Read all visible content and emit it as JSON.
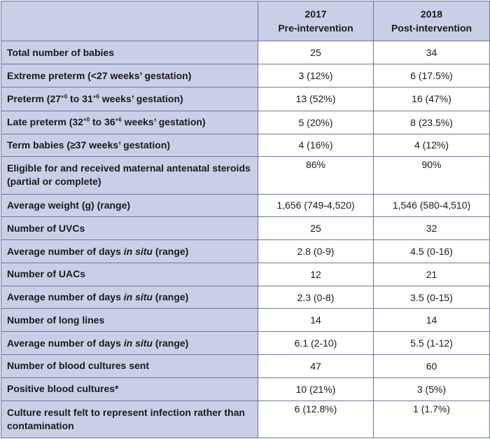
{
  "header": {
    "col1": {
      "year": "2017",
      "label": "Pre-intervention"
    },
    "col2": {
      "year": "2018",
      "label": "Post-intervention"
    }
  },
  "rows": [
    {
      "label": "Total number of babies",
      "v2017": "25",
      "v2018": "34"
    },
    {
      "label": "Extreme preterm (<27 weeks’ gestation)",
      "v2017": "3 (12%)",
      "v2018": "6 (17.5%)"
    },
    {
      "label_parts": [
        "Preterm (27",
        "+0",
        " to 31",
        "+6",
        " weeks’ gestation)"
      ],
      "v2017": "13 (52%)",
      "v2018": "16 (47%)"
    },
    {
      "label_parts": [
        "Late preterm (32",
        "+0",
        " to 36",
        "+6",
        " weeks’ gestation)"
      ],
      "v2017": "5 (20%)",
      "v2018": "8 (23.5%)"
    },
    {
      "label": "Term babies (≥37 weeks’ gestation)",
      "v2017": "4 (16%)",
      "v2018": "4 (12%)"
    },
    {
      "label": "Eligible for and received maternal antenatal steroids (partial or complete)",
      "v2017": "86%",
      "v2018": "90%"
    },
    {
      "label": "Average weight (g) (range)",
      "v2017": "1,656 (749-4,520)",
      "v2018": "1,546 (580-4,510)"
    },
    {
      "label": "Number of UVCs",
      "v2017": "25",
      "v2018": "32"
    },
    {
      "label_parts": [
        "Average number of days ",
        "in situ",
        " (range)"
      ],
      "v2017": "2.8 (0-9)",
      "v2018": "4.5 (0-16)"
    },
    {
      "label": "Number of UACs",
      "v2017": "12",
      "v2018": "21"
    },
    {
      "label_parts": [
        "Average number of days ",
        "in situ",
        " (range)"
      ],
      "v2017": "2.3 (0-8)",
      "v2018": "3.5 (0-15)"
    },
    {
      "label": "Number of long lines",
      "v2017": "14",
      "v2018": "14"
    },
    {
      "label_parts": [
        "Average number of days ",
        "in situ",
        " (range)"
      ],
      "v2017": "6.1 (2-10)",
      "v2018": "5.5 (1-12)"
    },
    {
      "label": "Number of blood cultures sent",
      "v2017": "47",
      "v2018": "60"
    },
    {
      "label": "Positive blood cultures*",
      "v2017": "10 (21%)",
      "v2018": "3 (5%)"
    },
    {
      "label": "Culture result felt to represent infection rather than contamination",
      "v2017": "6 (12.8%)",
      "v2018": "1 (1.7%)"
    }
  ]
}
